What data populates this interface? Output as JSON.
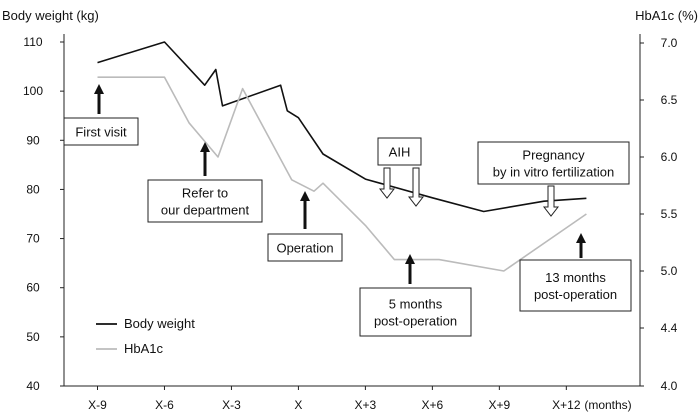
{
  "chart_data": {
    "type": "line",
    "left_axis": {
      "title": "Body weight (kg)",
      "range": [
        40,
        110
      ],
      "ticks": [
        40,
        50,
        60,
        70,
        80,
        90,
        100,
        110
      ]
    },
    "right_axis": {
      "title": "HbA1c (%)",
      "range": [
        4.0,
        7.0
      ],
      "ticks": [
        "4.0",
        "4.4",
        "5.0",
        "5.5",
        "6.0",
        "6.5",
        "7.0"
      ]
    },
    "x_axis": {
      "categories": [
        "X-9",
        "X-6",
        "X-3",
        "X",
        "X+3",
        "X+6",
        "X+9",
        "X+12"
      ],
      "unit_label": "(months)",
      "range": [
        -10.5,
        15.3
      ]
    },
    "series": [
      {
        "name": "Body weight",
        "axis": "left",
        "color": "#111111",
        "x": [
          -9,
          -6,
          -4.2,
          -3.7,
          -3.4,
          -0.8,
          -0.5,
          0,
          1.1,
          3,
          6,
          8.3,
          11,
          12.9
        ],
        "values": [
          105.8,
          110,
          101.2,
          104.4,
          97.0,
          101.2,
          96.0,
          94.6,
          87.2,
          82.1,
          78.3,
          75.5,
          77.6,
          78.2
        ]
      },
      {
        "name": "HbA1c",
        "axis": "right",
        "color": "#bbbbbb",
        "x": [
          -9,
          -6,
          -4.9,
          -3.6,
          -2.5,
          -0.3,
          0.7,
          1.1,
          3,
          4.3,
          6.3,
          9.2,
          12.9
        ],
        "values": [
          6.7,
          6.7,
          6.3,
          6.0,
          6.6,
          5.8,
          5.7,
          5.77,
          5.4,
          5.1,
          5.1,
          5.0,
          5.5
        ]
      }
    ],
    "annotations": [
      {
        "label": "First visit"
      },
      {
        "label": "Refer to\nour department"
      },
      {
        "label": "Operation"
      },
      {
        "label": "AIH"
      },
      {
        "label": "5 months\npost-operation"
      },
      {
        "label": "Pregnancy\nby in vitro fertilization"
      },
      {
        "label": "13 months\npost-operation"
      }
    ],
    "legend": {
      "position": "bottom-left"
    }
  }
}
